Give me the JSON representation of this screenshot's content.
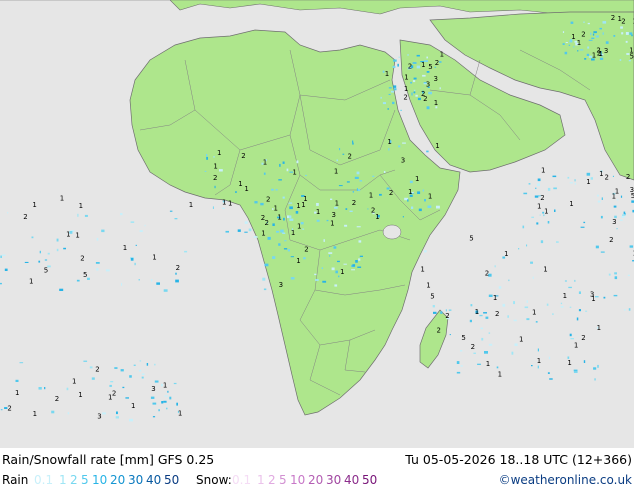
{
  "title": "Rain/Snowfall rate [mm]  GFS 0.25",
  "datetime": "Tu 05-05-2026 18..18 UTC (12+366)",
  "credit": "©weatheronline.co.uk",
  "legend": {
    "rain_label": "Rain",
    "rain_levels": [
      {
        "text": "0.1",
        "color": "#c8f0fa"
      },
      {
        "text": "1",
        "color": "#a0e6f5"
      },
      {
        "text": "2",
        "color": "#78d8f0"
      },
      {
        "text": "5",
        "color": "#50c8ec"
      },
      {
        "text": "10",
        "color": "#28b4e6"
      },
      {
        "text": "20",
        "color": "#1696d2"
      },
      {
        "text": "30",
        "color": "#0a78be"
      },
      {
        "text": "40",
        "color": "#0a5aa0"
      },
      {
        "text": "50",
        "color": "#0a3c82"
      }
    ],
    "snow_label": "Snow:",
    "snow_levels": [
      {
        "text": "0.1",
        "color": "#f5dcf5"
      },
      {
        "text": "1",
        "color": "#ebc3eb"
      },
      {
        "text": "2",
        "color": "#e1aae1"
      },
      {
        "text": "5",
        "color": "#d291d2"
      },
      {
        "text": "10",
        "color": "#c878c8"
      },
      {
        "text": "20",
        "color": "#b45fb4"
      },
      {
        "text": "30",
        "color": "#a046a0"
      },
      {
        "text": "40",
        "color": "#8c2d8c"
      },
      {
        "text": "50",
        "color": "#781478"
      }
    ]
  },
  "colors": {
    "land": "#aee68c",
    "sea": "#e6e6e6",
    "border": "#828282",
    "coast": "#6e6e6e"
  }
}
